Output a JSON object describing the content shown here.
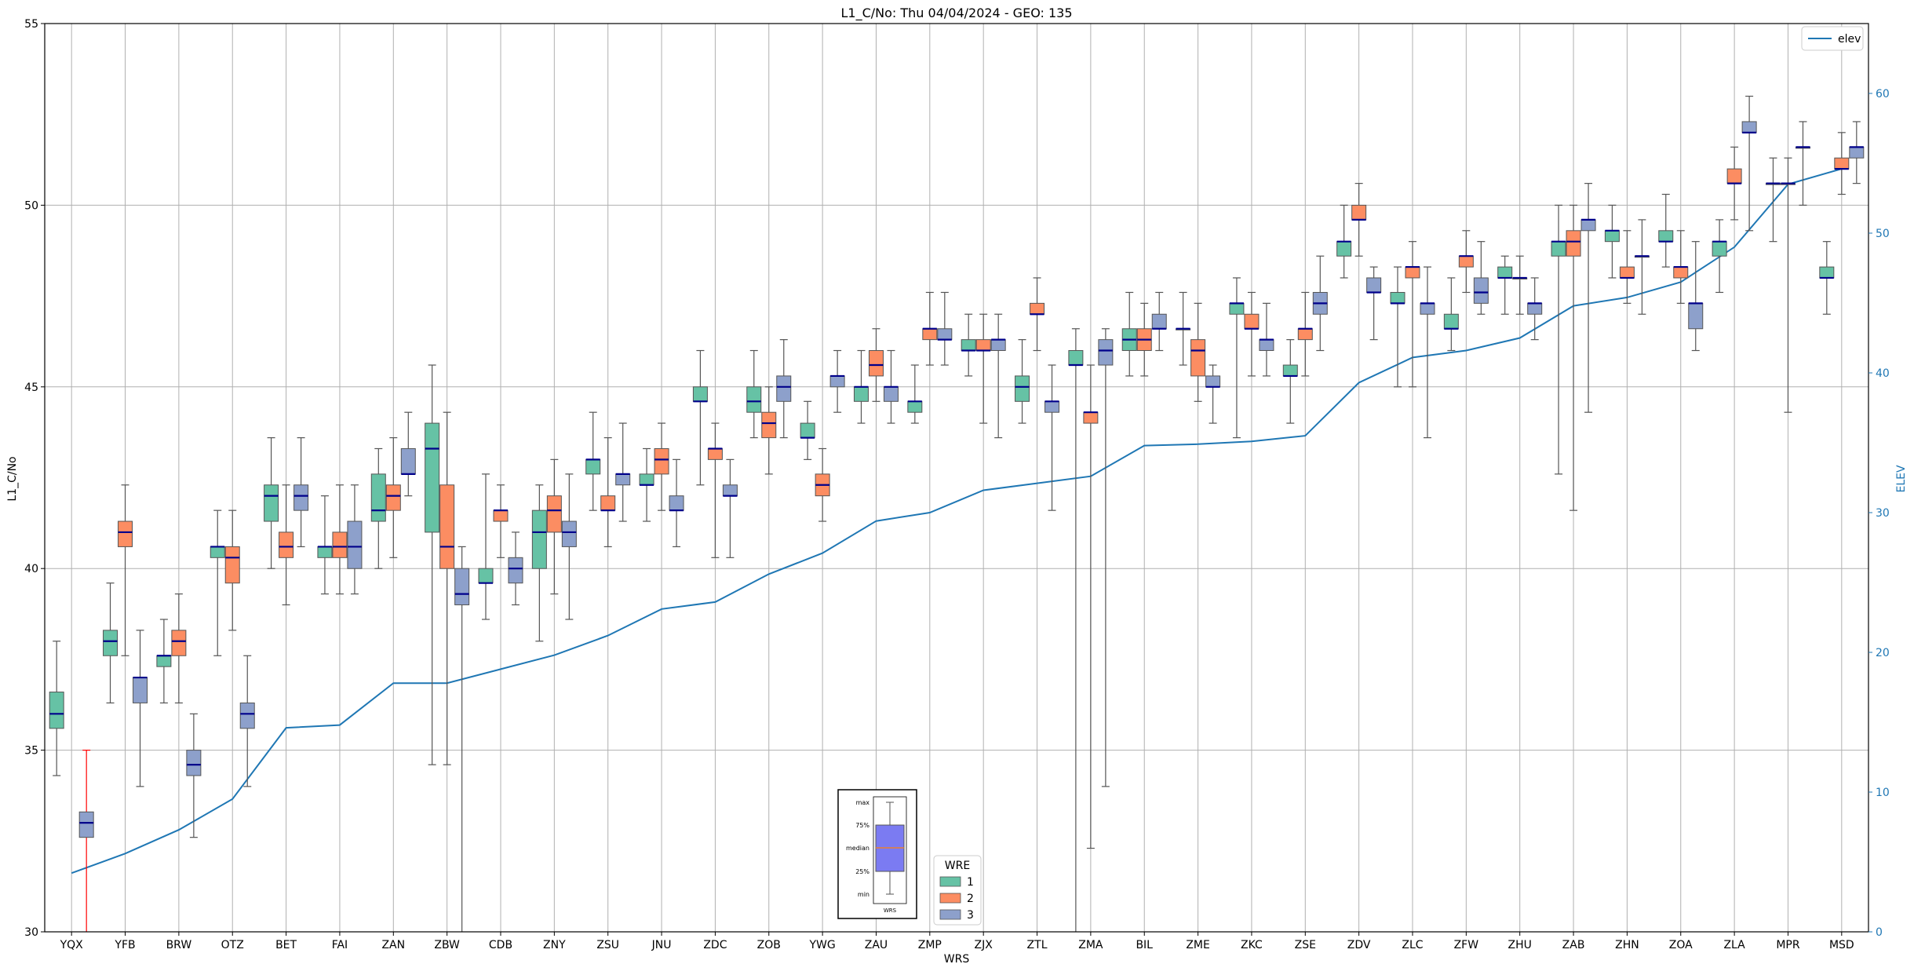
{
  "chart_data": {
    "type": "box",
    "title": "L1_C/No: Thu 04/04/2024 - GEO: 135",
    "xlabel": "WRS",
    "ylabel": "L1_C/No",
    "y2label": "ELEV",
    "ylim": [
      30,
      55
    ],
    "y2lim": [
      0,
      65
    ],
    "yticks": [
      "30",
      "35",
      "40",
      "45",
      "50",
      "55"
    ],
    "y2ticks": [
      "0",
      "10",
      "20",
      "30",
      "40",
      "50",
      "60"
    ],
    "grid": true,
    "colors": {
      "wre1": "#66c2a5",
      "wre2": "#fc8d62",
      "wre3": "#8da0cb",
      "median": "#00008b",
      "elev": "#1f77b4",
      "yqx_whisker": "#ff0000",
      "axis2": "#1f77b4"
    },
    "categories": [
      "YQX",
      "YFB",
      "BRW",
      "OTZ",
      "BET",
      "FAI",
      "ZAN",
      "ZBW",
      "CDB",
      "ZNY",
      "ZSU",
      "JNU",
      "ZDC",
      "ZOB",
      "YWG",
      "ZAU",
      "ZMP",
      "ZJX",
      "ZTL",
      "ZMA",
      "BIL",
      "ZME",
      "ZKC",
      "ZSE",
      "ZDV",
      "ZLC",
      "ZFW",
      "ZHU",
      "ZAB",
      "ZHN",
      "ZOA",
      "ZLA",
      "MPR",
      "MSD"
    ],
    "boxes": [
      {
        "station": "YQX",
        "wre": 1,
        "min": 34.3,
        "q1": 35.6,
        "median": 36.0,
        "q3": 36.6,
        "max": 38.0
      },
      {
        "station": "YQX",
        "wre": 3,
        "min": 30.0,
        "q1": 32.6,
        "median": 33.0,
        "q3": 33.3,
        "max": 35.0
      },
      {
        "station": "YFB",
        "wre": 1,
        "min": 36.3,
        "q1": 37.6,
        "median": 38.0,
        "q3": 38.3,
        "max": 39.6
      },
      {
        "station": "YFB",
        "wre": 2,
        "min": 37.6,
        "q1": 40.6,
        "median": 41.0,
        "q3": 41.3,
        "max": 42.3
      },
      {
        "station": "YFB",
        "wre": 3,
        "min": 34.0,
        "q1": 36.3,
        "median": 37.0,
        "q3": 37.0,
        "max": 38.3
      },
      {
        "station": "BRW",
        "wre": 1,
        "min": 36.3,
        "q1": 37.3,
        "median": 37.6,
        "q3": 37.6,
        "max": 38.6
      },
      {
        "station": "BRW",
        "wre": 2,
        "min": 36.3,
        "q1": 37.6,
        "median": 38.0,
        "q3": 38.3,
        "max": 39.3
      },
      {
        "station": "BRW",
        "wre": 3,
        "min": 32.6,
        "q1": 34.3,
        "median": 34.6,
        "q3": 35.0,
        "max": 36.0
      },
      {
        "station": "OTZ",
        "wre": 1,
        "min": 37.6,
        "q1": 40.3,
        "median": 40.6,
        "q3": 40.6,
        "max": 41.6
      },
      {
        "station": "OTZ",
        "wre": 2,
        "min": 38.3,
        "q1": 39.6,
        "median": 40.3,
        "q3": 40.6,
        "max": 41.6
      },
      {
        "station": "OTZ",
        "wre": 3,
        "min": 34.0,
        "q1": 35.6,
        "median": 36.0,
        "q3": 36.3,
        "max": 37.6
      },
      {
        "station": "BET",
        "wre": 1,
        "min": 40.0,
        "q1": 41.3,
        "median": 42.0,
        "q3": 42.3,
        "max": 43.6
      },
      {
        "station": "BET",
        "wre": 2,
        "min": 39.0,
        "q1": 40.3,
        "median": 40.6,
        "q3": 41.0,
        "max": 42.3
      },
      {
        "station": "BET",
        "wre": 3,
        "min": 40.6,
        "q1": 41.6,
        "median": 42.0,
        "q3": 42.3,
        "max": 43.6
      },
      {
        "station": "FAI",
        "wre": 1,
        "min": 39.3,
        "q1": 40.3,
        "median": 40.6,
        "q3": 40.6,
        "max": 42.0
      },
      {
        "station": "FAI",
        "wre": 2,
        "min": 39.3,
        "q1": 40.3,
        "median": 40.6,
        "q3": 41.0,
        "max": 42.3
      },
      {
        "station": "FAI",
        "wre": 3,
        "min": 39.3,
        "q1": 40.0,
        "median": 40.6,
        "q3": 41.3,
        "max": 42.3
      },
      {
        "station": "ZAN",
        "wre": 1,
        "min": 40.0,
        "q1": 41.3,
        "median": 41.6,
        "q3": 42.6,
        "max": 43.3
      },
      {
        "station": "ZAN",
        "wre": 2,
        "min": 40.3,
        "q1": 41.6,
        "median": 42.0,
        "q3": 42.3,
        "max": 43.6
      },
      {
        "station": "ZAN",
        "wre": 3,
        "min": 42.0,
        "q1": 42.6,
        "median": 42.6,
        "q3": 43.3,
        "max": 44.3
      },
      {
        "station": "ZBW",
        "wre": 1,
        "min": 34.6,
        "q1": 41.0,
        "median": 43.3,
        "q3": 44.0,
        "max": 45.6
      },
      {
        "station": "ZBW",
        "wre": 2,
        "min": 34.6,
        "q1": 40.0,
        "median": 40.6,
        "q3": 42.3,
        "max": 44.3
      },
      {
        "station": "ZBW",
        "wre": 3,
        "min": 30.0,
        "q1": 39.0,
        "median": 39.3,
        "q3": 40.0,
        "max": 40.6
      },
      {
        "station": "CDB",
        "wre": 1,
        "min": 38.6,
        "q1": 39.6,
        "median": 39.6,
        "q3": 40.0,
        "max": 42.6
      },
      {
        "station": "CDB",
        "wre": 2,
        "min": 40.3,
        "q1": 41.3,
        "median": 41.6,
        "q3": 41.6,
        "max": 42.3
      },
      {
        "station": "CDB",
        "wre": 3,
        "min": 39.0,
        "q1": 39.6,
        "median": 40.0,
        "q3": 40.3,
        "max": 41.0
      },
      {
        "station": "ZNY",
        "wre": 1,
        "min": 38.0,
        "q1": 40.0,
        "median": 41.0,
        "q3": 41.6,
        "max": 42.3
      },
      {
        "station": "ZNY",
        "wre": 2,
        "min": 39.3,
        "q1": 41.0,
        "median": 41.6,
        "q3": 42.0,
        "max": 43.0
      },
      {
        "station": "ZNY",
        "wre": 3,
        "min": 38.6,
        "q1": 40.6,
        "median": 41.0,
        "q3": 41.3,
        "max": 42.6
      },
      {
        "station": "ZSU",
        "wre": 1,
        "min": 41.6,
        "q1": 42.6,
        "median": 43.0,
        "q3": 43.0,
        "max": 44.3
      },
      {
        "station": "ZSU",
        "wre": 2,
        "min": 40.6,
        "q1": 41.6,
        "median": 41.6,
        "q3": 42.0,
        "max": 43.6
      },
      {
        "station": "ZSU",
        "wre": 3,
        "min": 41.3,
        "q1": 42.3,
        "median": 42.6,
        "q3": 42.6,
        "max": 44.0
      },
      {
        "station": "JNU",
        "wre": 1,
        "min": 41.3,
        "q1": 42.3,
        "median": 42.3,
        "q3": 42.6,
        "max": 43.3
      },
      {
        "station": "JNU",
        "wre": 2,
        "min": 41.6,
        "q1": 42.6,
        "median": 43.0,
        "q3": 43.3,
        "max": 44.0
      },
      {
        "station": "JNU",
        "wre": 3,
        "min": 40.6,
        "q1": 41.6,
        "median": 41.6,
        "q3": 42.0,
        "max": 43.0
      },
      {
        "station": "ZDC",
        "wre": 1,
        "min": 42.3,
        "q1": 44.6,
        "median": 44.6,
        "q3": 45.0,
        "max": 46.0
      },
      {
        "station": "ZDC",
        "wre": 2,
        "min": 40.3,
        "q1": 43.0,
        "median": 43.3,
        "q3": 43.3,
        "max": 44.0
      },
      {
        "station": "ZDC",
        "wre": 3,
        "min": 40.3,
        "q1": 42.0,
        "median": 42.0,
        "q3": 42.3,
        "max": 43.0
      },
      {
        "station": "ZOB",
        "wre": 1,
        "min": 43.6,
        "q1": 44.3,
        "median": 44.6,
        "q3": 45.0,
        "max": 46.0
      },
      {
        "station": "ZOB",
        "wre": 2,
        "min": 42.6,
        "q1": 43.6,
        "median": 44.0,
        "q3": 44.3,
        "max": 45.0
      },
      {
        "station": "ZOB",
        "wre": 3,
        "min": 43.6,
        "q1": 44.6,
        "median": 45.0,
        "q3": 45.3,
        "max": 46.3
      },
      {
        "station": "YWG",
        "wre": 1,
        "min": 43.0,
        "q1": 43.6,
        "median": 43.6,
        "q3": 44.0,
        "max": 44.6
      },
      {
        "station": "YWG",
        "wre": 2,
        "min": 41.3,
        "q1": 42.0,
        "median": 42.3,
        "q3": 42.6,
        "max": 43.3
      },
      {
        "station": "YWG",
        "wre": 3,
        "min": 44.3,
        "q1": 45.0,
        "median": 45.3,
        "q3": 45.3,
        "max": 46.0
      },
      {
        "station": "ZAU",
        "wre": 1,
        "min": 44.0,
        "q1": 44.6,
        "median": 45.0,
        "q3": 45.0,
        "max": 46.0
      },
      {
        "station": "ZAU",
        "wre": 2,
        "min": 44.6,
        "q1": 45.3,
        "median": 45.6,
        "q3": 46.0,
        "max": 46.6
      },
      {
        "station": "ZAU",
        "wre": 3,
        "min": 44.0,
        "q1": 44.6,
        "median": 45.0,
        "q3": 45.0,
        "max": 46.0
      },
      {
        "station": "ZMP",
        "wre": 1,
        "min": 44.0,
        "q1": 44.3,
        "median": 44.6,
        "q3": 44.6,
        "max": 45.6
      },
      {
        "station": "ZMP",
        "wre": 2,
        "min": 45.6,
        "q1": 46.3,
        "median": 46.6,
        "q3": 46.6,
        "max": 47.6
      },
      {
        "station": "ZMP",
        "wre": 3,
        "min": 45.6,
        "q1": 46.3,
        "median": 46.3,
        "q3": 46.6,
        "max": 47.6
      },
      {
        "station": "ZJX",
        "wre": 1,
        "min": 45.3,
        "q1": 46.0,
        "median": 46.0,
        "q3": 46.3,
        "max": 47.0
      },
      {
        "station": "ZJX",
        "wre": 2,
        "min": 44.0,
        "q1": 46.0,
        "median": 46.0,
        "q3": 46.3,
        "max": 47.0
      },
      {
        "station": "ZJX",
        "wre": 3,
        "min": 43.6,
        "q1": 46.0,
        "median": 46.3,
        "q3": 46.3,
        "max": 47.0
      },
      {
        "station": "ZTL",
        "wre": 1,
        "min": 44.0,
        "q1": 44.6,
        "median": 45.0,
        "q3": 45.3,
        "max": 46.3
      },
      {
        "station": "ZTL",
        "wre": 2,
        "min": 46.0,
        "q1": 47.0,
        "median": 47.0,
        "q3": 47.3,
        "max": 48.0
      },
      {
        "station": "ZTL",
        "wre": 3,
        "min": 41.6,
        "q1": 44.3,
        "median": 44.6,
        "q3": 44.6,
        "max": 45.6
      },
      {
        "station": "ZMA",
        "wre": 1,
        "min": 30.0,
        "q1": 45.6,
        "median": 45.6,
        "q3": 46.0,
        "max": 46.6
      },
      {
        "station": "ZMA",
        "wre": 2,
        "min": 32.3,
        "q1": 44.0,
        "median": 44.3,
        "q3": 44.3,
        "max": 45.6
      },
      {
        "station": "ZMA",
        "wre": 3,
        "min": 34.0,
        "q1": 45.6,
        "median": 46.0,
        "q3": 46.3,
        "max": 46.6
      },
      {
        "station": "BIL",
        "wre": 1,
        "min": 45.3,
        "q1": 46.0,
        "median": 46.3,
        "q3": 46.6,
        "max": 47.6
      },
      {
        "station": "BIL",
        "wre": 2,
        "min": 45.3,
        "q1": 46.0,
        "median": 46.3,
        "q3": 46.6,
        "max": 47.3
      },
      {
        "station": "BIL",
        "wre": 3,
        "min": 46.0,
        "q1": 46.6,
        "median": 46.6,
        "q3": 47.0,
        "max": 47.6
      },
      {
        "station": "ZME",
        "wre": 1,
        "min": 45.6,
        "q1": 46.6,
        "median": 46.6,
        "q3": 46.6,
        "max": 47.6
      },
      {
        "station": "ZME",
        "wre": 2,
        "min": 44.6,
        "q1": 45.3,
        "median": 46.0,
        "q3": 46.3,
        "max": 47.3
      },
      {
        "station": "ZME",
        "wre": 3,
        "min": 44.0,
        "q1": 45.0,
        "median": 45.0,
        "q3": 45.3,
        "max": 45.6
      },
      {
        "station": "ZKC",
        "wre": 1,
        "min": 43.6,
        "q1": 47.0,
        "median": 47.3,
        "q3": 47.3,
        "max": 48.0
      },
      {
        "station": "ZKC",
        "wre": 2,
        "min": 45.3,
        "q1": 46.6,
        "median": 46.6,
        "q3": 47.0,
        "max": 47.6
      },
      {
        "station": "ZKC",
        "wre": 3,
        "min": 45.3,
        "q1": 46.0,
        "median": 46.3,
        "q3": 46.3,
        "max": 47.3
      },
      {
        "station": "ZSE",
        "wre": 1,
        "min": 44.0,
        "q1": 45.3,
        "median": 45.3,
        "q3": 45.6,
        "max": 46.3
      },
      {
        "station": "ZSE",
        "wre": 2,
        "min": 45.3,
        "q1": 46.3,
        "median": 46.6,
        "q3": 46.6,
        "max": 47.6
      },
      {
        "station": "ZSE",
        "wre": 3,
        "min": 46.0,
        "q1": 47.0,
        "median": 47.3,
        "q3": 47.6,
        "max": 48.6
      },
      {
        "station": "ZDV",
        "wre": 1,
        "min": 48.0,
        "q1": 48.6,
        "median": 49.0,
        "q3": 49.0,
        "max": 50.0
      },
      {
        "station": "ZDV",
        "wre": 2,
        "min": 48.6,
        "q1": 49.6,
        "median": 49.6,
        "q3": 50.0,
        "max": 50.6
      },
      {
        "station": "ZDV",
        "wre": 3,
        "min": 46.3,
        "q1": 47.6,
        "median": 47.6,
        "q3": 48.0,
        "max": 48.3
      },
      {
        "station": "ZLC",
        "wre": 1,
        "min": 45.0,
        "q1": 47.3,
        "median": 47.3,
        "q3": 47.6,
        "max": 48.3
      },
      {
        "station": "ZLC",
        "wre": 2,
        "min": 45.0,
        "q1": 48.0,
        "median": 48.3,
        "q3": 48.3,
        "max": 49.0
      },
      {
        "station": "ZLC",
        "wre": 3,
        "min": 43.6,
        "q1": 47.0,
        "median": 47.3,
        "q3": 47.3,
        "max": 48.3
      },
      {
        "station": "ZFW",
        "wre": 1,
        "min": 46.0,
        "q1": 46.6,
        "median": 46.6,
        "q3": 47.0,
        "max": 48.0
      },
      {
        "station": "ZFW",
        "wre": 2,
        "min": 47.6,
        "q1": 48.3,
        "median": 48.6,
        "q3": 48.6,
        "max": 49.3
      },
      {
        "station": "ZFW",
        "wre": 3,
        "min": 47.0,
        "q1": 47.3,
        "median": 47.6,
        "q3": 48.0,
        "max": 49.0
      },
      {
        "station": "ZHU",
        "wre": 1,
        "min": 47.0,
        "q1": 48.0,
        "median": 48.0,
        "q3": 48.3,
        "max": 48.6
      },
      {
        "station": "ZHU",
        "wre": 2,
        "min": 47.0,
        "q1": 48.0,
        "median": 48.0,
        "q3": 48.0,
        "max": 48.6
      },
      {
        "station": "ZHU",
        "wre": 3,
        "min": 46.3,
        "q1": 47.0,
        "median": 47.3,
        "q3": 47.3,
        "max": 48.0
      },
      {
        "station": "ZAB",
        "wre": 1,
        "min": 42.6,
        "q1": 48.6,
        "median": 49.0,
        "q3": 49.0,
        "max": 50.0
      },
      {
        "station": "ZAB",
        "wre": 2,
        "min": 41.6,
        "q1": 48.6,
        "median": 49.0,
        "q3": 49.3,
        "max": 50.0
      },
      {
        "station": "ZAB",
        "wre": 3,
        "min": 44.3,
        "q1": 49.3,
        "median": 49.6,
        "q3": 49.6,
        "max": 50.6
      },
      {
        "station": "ZHN",
        "wre": 1,
        "min": 48.0,
        "q1": 49.0,
        "median": 49.3,
        "q3": 49.3,
        "max": 50.0
      },
      {
        "station": "ZHN",
        "wre": 2,
        "min": 47.3,
        "q1": 48.0,
        "median": 48.0,
        "q3": 48.3,
        "max": 49.3
      },
      {
        "station": "ZHN",
        "wre": 3,
        "min": 47.0,
        "q1": 48.6,
        "median": 48.6,
        "q3": 48.6,
        "max": 49.6
      },
      {
        "station": "ZOA",
        "wre": 1,
        "min": 48.3,
        "q1": 49.0,
        "median": 49.0,
        "q3": 49.3,
        "max": 50.3
      },
      {
        "station": "ZOA",
        "wre": 2,
        "min": 47.3,
        "q1": 48.0,
        "median": 48.3,
        "q3": 48.3,
        "max": 49.3
      },
      {
        "station": "ZOA",
        "wre": 3,
        "min": 46.0,
        "q1": 46.6,
        "median": 47.3,
        "q3": 47.3,
        "max": 49.0
      },
      {
        "station": "ZLA",
        "wre": 1,
        "min": 47.6,
        "q1": 48.6,
        "median": 49.0,
        "q3": 49.0,
        "max": 49.6
      },
      {
        "station": "ZLA",
        "wre": 2,
        "min": 49.6,
        "q1": 50.6,
        "median": 50.6,
        "q3": 51.0,
        "max": 51.6
      },
      {
        "station": "ZLA",
        "wre": 3,
        "min": 49.3,
        "q1": 52.0,
        "median": 52.0,
        "q3": 52.3,
        "max": 53.0
      },
      {
        "station": "MPR",
        "wre": 1,
        "min": 49.0,
        "q1": 50.6,
        "median": 50.6,
        "q3": 50.6,
        "max": 51.3
      },
      {
        "station": "MPR",
        "wre": 2,
        "min": 44.3,
        "q1": 50.6,
        "median": 50.6,
        "q3": 50.6,
        "max": 51.3
      },
      {
        "station": "MPR",
        "wre": 3,
        "min": 50.0,
        "q1": 51.6,
        "median": 51.6,
        "q3": 51.6,
        "max": 52.3
      },
      {
        "station": "MSD",
        "wre": 1,
        "min": 47.0,
        "q1": 48.0,
        "median": 48.0,
        "q3": 48.3,
        "max": 49.0
      },
      {
        "station": "MSD",
        "wre": 2,
        "min": 50.3,
        "q1": 51.0,
        "median": 51.0,
        "q3": 51.3,
        "max": 52.0
      },
      {
        "station": "MSD",
        "wre": 3,
        "min": 50.6,
        "q1": 51.3,
        "median": 51.6,
        "q3": 51.6,
        "max": 52.3
      }
    ],
    "elev_series": {
      "name": "elev",
      "values": [
        4.2,
        5.6,
        7.3,
        9.5,
        14.6,
        14.8,
        17.8,
        17.8,
        18.8,
        19.8,
        21.2,
        23.1,
        23.6,
        25.6,
        27.1,
        29.4,
        30.0,
        31.6,
        32.1,
        32.6,
        34.8,
        34.9,
        35.1,
        35.5,
        39.3,
        41.1,
        41.6,
        42.5,
        44.8,
        45.4,
        46.5,
        49.0,
        53.5,
        54.6
      ]
    },
    "legend_elev": {
      "label": "elev",
      "position": "top-right"
    },
    "legend_wre": {
      "title": "WRE",
      "items": [
        {
          "label": "1",
          "color": "#66c2a5"
        },
        {
          "label": "2",
          "color": "#fc8d62"
        },
        {
          "label": "3",
          "color": "#8da0cb"
        }
      ],
      "position": "lower-center"
    },
    "key_box": {
      "labels": [
        "max",
        "75%",
        "median",
        "25%",
        "min"
      ],
      "xlabel": "WRS",
      "box_color": "#7b7bf2"
    }
  }
}
